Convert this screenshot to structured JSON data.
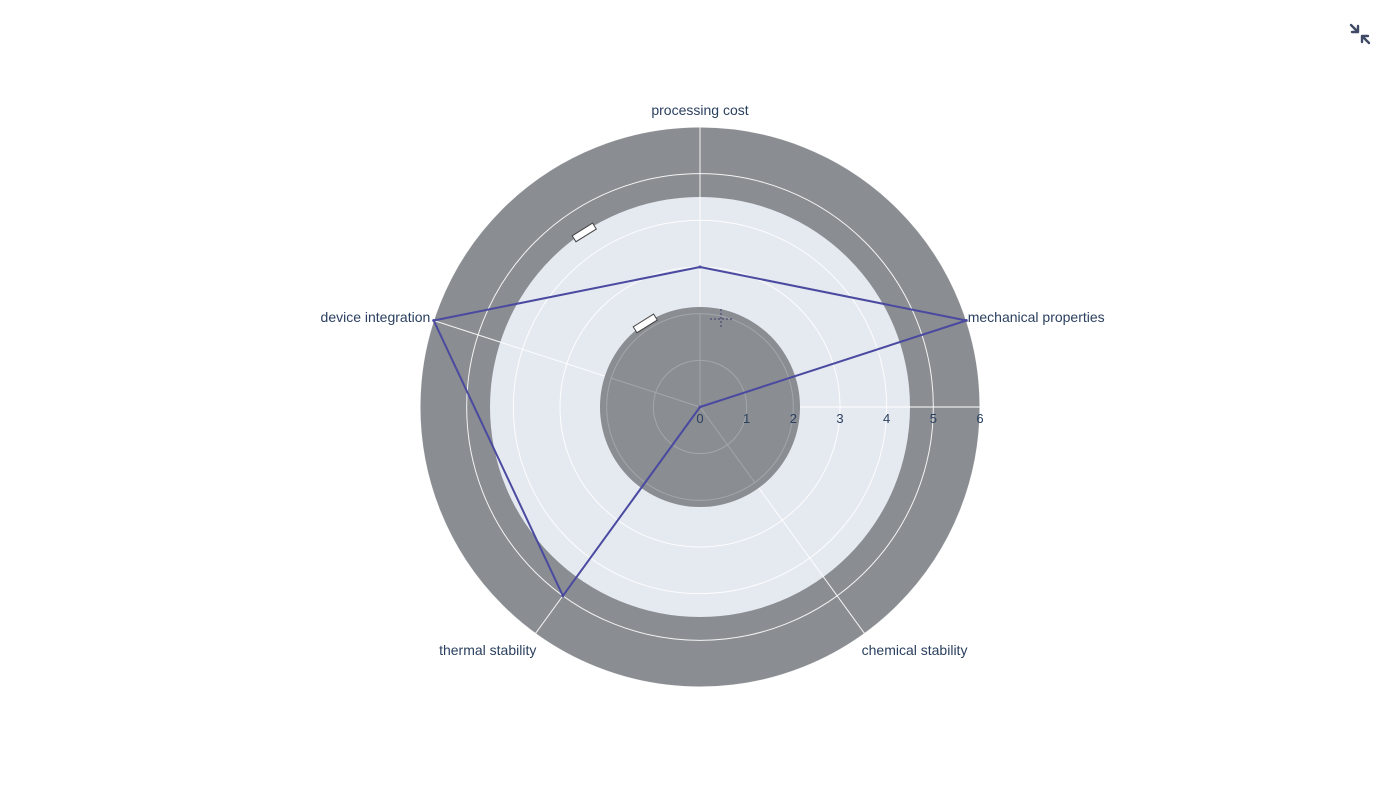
{
  "chart_data": {
    "type": "radar",
    "title": "",
    "categories": [
      "processing cost",
      "mechanical properties",
      "chemical stability",
      "thermal stability",
      "device integration"
    ],
    "series": [
      {
        "values": [
          3,
          6,
          0,
          5,
          6
        ]
      }
    ],
    "radial_ticks": [
      "0",
      "1",
      "2",
      "3",
      "4",
      "5",
      "6"
    ],
    "radial_range": [
      0,
      6
    ],
    "grid": true,
    "legend": false,
    "colors": {
      "line": "#4a4aa0",
      "outer_band": "#8a8d91",
      "inner_disc": "#8a8d91",
      "plot_bg": "#e5e9f0",
      "grid": "#ffffff",
      "text": "#2a3f5f"
    }
  },
  "toolbar": {
    "collapse_icon": "collapse-arrows-icon"
  }
}
